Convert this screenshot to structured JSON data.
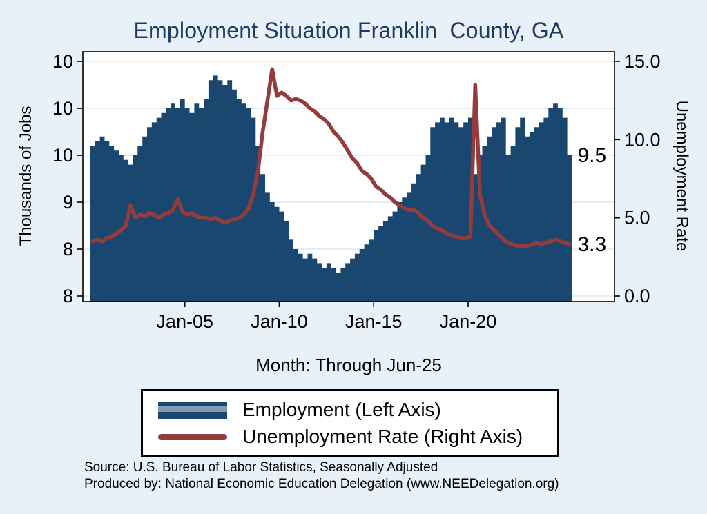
{
  "title": "Employment Situation Franklin  County, GA",
  "left_axis_title": "Thousands of Jobs",
  "right_axis_title": "Unemployment Rate",
  "x_axis_title": "Month: Through Jun-25",
  "legend": {
    "items": [
      {
        "label": "Employment (Left Axis)",
        "type": "area",
        "color": "#1a476f",
        "inner_color": "#7f9cb5"
      },
      {
        "label": "Unemployment Rate (Right Axis)",
        "type": "line",
        "color": "#953b3b"
      }
    ]
  },
  "footer": {
    "source": "Source: U.S. Bureau of Labor Statistics, Seasonally Adjusted",
    "produced_by": "Produced by: National Economic Education Delegation (www.NEEDelegation.org)"
  },
  "colors": {
    "background": "#e8f1f8",
    "plot_background": "#ffffff",
    "title": "#1f3a68",
    "employment_area": "#1a476f",
    "unemployment_line": "#953b3b",
    "gridline": "#d7e2ec",
    "axis": "#000000"
  },
  "chart_data": {
    "type": "area+line",
    "title": "Employment Situation Franklin  County, GA",
    "x_unit": "decimal_year_quarterly",
    "x_start": 2000.125,
    "x_step": 0.25,
    "xlim": [
      1999.6,
      2027.75
    ],
    "x_ticks": [
      {
        "value": 2005.0,
        "label": "Jan-05"
      },
      {
        "value": 2010.0,
        "label": "Jan-10"
      },
      {
        "value": 2015.0,
        "label": "Jan-15"
      },
      {
        "value": 2020.0,
        "label": "Jan-20"
      }
    ],
    "xlabel": "Month: Through Jun-25",
    "grid": true,
    "legend_position": "bottom",
    "left_axis": {
      "label": "Thousands of Jobs",
      "min": 8,
      "max": 10.5,
      "ticks": [
        {
          "value": 8,
          "label": "8"
        },
        {
          "value": 8.5,
          "label": "8"
        },
        {
          "value": 9,
          "label": "9"
        },
        {
          "value": 9.5,
          "label": "10"
        },
        {
          "value": 10,
          "label": "10"
        },
        {
          "value": 10.5,
          "label": "10"
        }
      ]
    },
    "right_axis": {
      "label": "Unemployment Rate",
      "min": 0,
      "max": 15,
      "ticks": [
        {
          "value": 0,
          "label": "0.0"
        },
        {
          "value": 5,
          "label": "5.0"
        },
        {
          "value": 10,
          "label": "10.0"
        },
        {
          "value": 15,
          "label": "15.0"
        }
      ]
    },
    "series": [
      {
        "name": "Employment (Left Axis)",
        "axis": "left",
        "style": "step-area",
        "color": "#1a476f",
        "values": [
          9.6,
          9.65,
          9.7,
          9.65,
          9.6,
          9.55,
          9.5,
          9.45,
          9.4,
          9.5,
          9.6,
          9.7,
          9.8,
          9.85,
          9.9,
          9.95,
          10.0,
          10.05,
          10.0,
          10.1,
          10.0,
          9.95,
          10.05,
          10.0,
          10.1,
          10.3,
          10.35,
          10.3,
          10.25,
          10.3,
          10.2,
          10.1,
          10.05,
          10.0,
          9.9,
          9.6,
          9.3,
          9.1,
          9.0,
          8.95,
          8.9,
          8.8,
          8.6,
          8.5,
          8.45,
          8.4,
          8.45,
          8.4,
          8.35,
          8.3,
          8.35,
          8.3,
          8.25,
          8.3,
          8.35,
          8.4,
          8.45,
          8.5,
          8.55,
          8.6,
          8.7,
          8.75,
          8.8,
          8.85,
          8.9,
          9.0,
          9.05,
          9.1,
          9.2,
          9.3,
          9.4,
          9.5,
          9.8,
          9.85,
          9.9,
          9.85,
          9.9,
          9.85,
          9.8,
          9.85,
          9.9,
          9.3,
          9.5,
          9.6,
          9.7,
          9.8,
          9.85,
          9.9,
          9.5,
          9.6,
          9.8,
          9.9,
          9.7,
          9.75,
          9.8,
          9.85,
          9.9,
          10.0,
          10.05,
          10.0,
          9.9,
          9.5
        ]
      },
      {
        "name": "Unemployment Rate (Right Axis)",
        "axis": "right",
        "style": "line",
        "color": "#953b3b",
        "values": [
          3.5,
          3.6,
          3.5,
          3.7,
          3.8,
          4.0,
          4.2,
          4.5,
          5.8,
          5.0,
          5.2,
          5.1,
          5.3,
          5.2,
          5.0,
          5.2,
          5.3,
          5.5,
          6.2,
          5.4,
          5.2,
          5.3,
          5.1,
          5.0,
          5.0,
          4.9,
          5.0,
          4.8,
          4.7,
          4.8,
          4.9,
          5.0,
          5.2,
          5.6,
          6.5,
          8.0,
          10.5,
          12.5,
          14.5,
          12.8,
          13.0,
          12.8,
          12.5,
          12.6,
          12.5,
          12.3,
          12.0,
          11.8,
          11.5,
          11.3,
          11.0,
          10.5,
          10.2,
          9.8,
          9.3,
          8.8,
          8.5,
          8.0,
          7.8,
          7.5,
          7.0,
          6.8,
          6.5,
          6.3,
          6.0,
          5.8,
          5.6,
          5.5,
          5.5,
          5.3,
          5.0,
          4.8,
          4.5,
          4.3,
          4.2,
          4.0,
          3.9,
          3.8,
          3.7,
          3.7,
          3.8,
          13.5,
          6.5,
          5.2,
          4.5,
          4.2,
          3.9,
          3.6,
          3.4,
          3.3,
          3.2,
          3.2,
          3.2,
          3.3,
          3.4,
          3.3,
          3.4,
          3.5,
          3.6,
          3.5,
          3.4,
          3.3
        ]
      }
    ],
    "annotations": [
      {
        "label": "9.5",
        "axis": "left",
        "value": 9.5
      },
      {
        "label": "3.3",
        "axis": "right",
        "value": 3.3
      }
    ],
    "last_point": "Jun-25"
  }
}
